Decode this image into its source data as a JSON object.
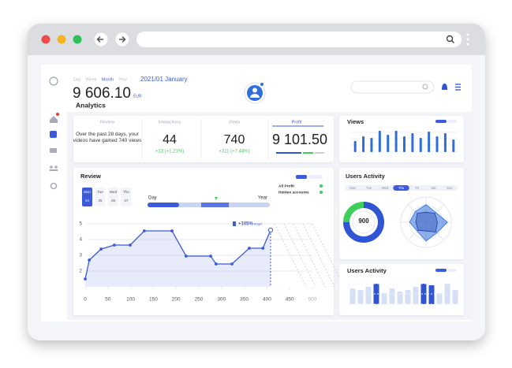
{
  "header": {
    "tabs": [
      "Day",
      "Week",
      "Month",
      "Year"
    ],
    "active_tab": 2,
    "period": "2021/01 January",
    "total": "9 606.10",
    "currency": "EUR",
    "title": "Analytics"
  },
  "stats": {
    "review": {
      "label": "Review",
      "text": "Over the past 28 days, your videos have gained 740 views"
    },
    "interactions": {
      "label": "Interactions",
      "value": "44",
      "change": "+13 (+1.21%)"
    },
    "views": {
      "label": "Views",
      "value": "740",
      "change": "+311 (+7.44%)"
    },
    "profit": {
      "label": "Profit",
      "value": "9 101.50"
    }
  },
  "views_chart": {
    "title": "Views",
    "type": "bar",
    "values": [
      14,
      20,
      18,
      27,
      22,
      27,
      20,
      24,
      18,
      26,
      20,
      24,
      16
    ],
    "ylim": [
      0,
      30
    ],
    "color": "#2f6fdc"
  },
  "review": {
    "title": "Review",
    "days": [
      "Mon",
      "Tue",
      "Wed",
      "Thu"
    ],
    "dates": [
      "24",
      "25",
      "26",
      "27"
    ],
    "active_day": 0,
    "range_start": "Day",
    "range_end": "Year",
    "toggles": [
      "All Profit",
      "Hidden accounts"
    ],
    "chart": {
      "type": "line",
      "x": [
        0,
        9,
        35,
        64,
        99,
        130,
        191,
        222,
        276,
        288,
        323,
        361,
        391,
        408
      ],
      "values": [
        1.5,
        2.7,
        3.4,
        3.65,
        3.65,
        4.55,
        4.55,
        2.95,
        2.95,
        2.45,
        2.45,
        3.45,
        3.45,
        4.6
      ],
      "xlim": [
        0,
        500
      ],
      "ylim": [
        1,
        5
      ],
      "xticks": [
        0,
        50,
        100,
        150,
        200,
        250,
        300,
        350,
        400,
        450,
        500
      ],
      "yticks": [
        2,
        3,
        4,
        5
      ],
      "grid": true,
      "color": "#3d5bd9",
      "annotation": "+105%",
      "annotation_note": "Bright"
    }
  },
  "users_activity": {
    "title": "Users Activity",
    "days": [
      "Mon",
      "Tue",
      "Wed",
      "Thu",
      "Fri",
      "Sat",
      "Sun"
    ],
    "active_day": 3,
    "donut": {
      "type": "pie",
      "label": "900",
      "values": [
        75,
        25
      ],
      "colors": [
        "#2f55d4",
        "#3ecf5a"
      ]
    },
    "radar": {
      "type": "radar",
      "rlim": [
        0,
        100
      ],
      "series": [
        {
          "color": "#2f6fdc",
          "values": [
            70,
            55,
            85,
            60,
            75,
            50,
            65,
            60
          ]
        },
        {
          "color": "#1d3fa8",
          "values": [
            40,
            50,
            45,
            55,
            35,
            45,
            40,
            50
          ]
        }
      ]
    }
  },
  "users_activity_bars": {
    "title": "Users Activity",
    "type": "bar",
    "values": [
      20,
      18,
      22,
      26,
      14,
      20,
      16,
      18,
      22,
      26,
      24,
      14,
      26,
      18
    ],
    "colors": [
      "#d6e0f5",
      "#d6e0f5",
      "#d6e0f5",
      "#2f55d4",
      "#d6e0f5",
      "#d6e0f5",
      "#d6e0f5",
      "#d6e0f5",
      "#d6e0f5",
      "#2f55d4",
      "#2f55d4",
      "#d6e0f5",
      "#d6e0f5",
      "#d6e0f5"
    ],
    "ylim": [
      0,
      30
    ]
  }
}
